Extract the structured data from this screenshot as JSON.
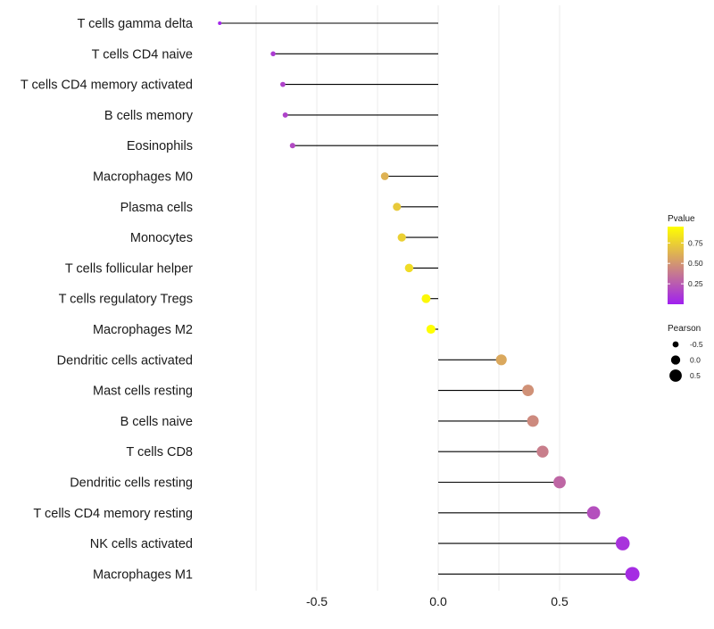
{
  "chart_data": {
    "type": "lollipop",
    "title": "",
    "xlabel": "",
    "ylabel": "",
    "xlim": [
      -1.0,
      0.82
    ],
    "x_ticks": [
      -0.5,
      0.0,
      0.5
    ],
    "x_tick_labels": [
      "-0.5",
      "0.0",
      "0.5"
    ],
    "categories": [
      "T cells gamma delta",
      "T cells CD4 naive",
      "T cells CD4 memory activated",
      "B cells memory",
      "Eosinophils",
      "Macrophages M0",
      "Plasma cells",
      "Monocytes",
      "T cells follicular helper",
      "T cells regulatory  Tregs",
      "Macrophages M2",
      "Dendritic cells activated",
      "Mast cells resting",
      "B cells naive",
      "T cells CD8",
      "Dendritic cells resting",
      "T cells CD4 memory resting",
      "NK cells activated",
      "Macrophages M1"
    ],
    "pearson": [
      -0.9,
      -0.68,
      -0.64,
      -0.63,
      -0.6,
      -0.22,
      -0.17,
      -0.15,
      -0.12,
      -0.05,
      -0.03,
      0.26,
      0.37,
      0.39,
      0.43,
      0.5,
      0.64,
      0.76,
      0.8
    ],
    "pvalue": [
      0.02,
      0.12,
      0.15,
      0.15,
      0.18,
      0.62,
      0.72,
      0.75,
      0.8,
      0.92,
      0.95,
      0.58,
      0.48,
      0.45,
      0.4,
      0.3,
      0.2,
      0.08,
      0.05
    ],
    "legend_color": {
      "title": "Pvalue",
      "ticks": [
        0.75,
        0.5,
        0.25
      ],
      "tick_labels": [
        "0.75",
        "0.50",
        "0.25"
      ],
      "range": [
        0.0,
        0.95
      ],
      "low_color": "#a020f0",
      "high_color": "#ffff00"
    },
    "legend_size": {
      "title": "Pearson",
      "values": [
        -0.5,
        0.0,
        0.5
      ],
      "labels": [
        "-0.5",
        "0.0",
        "0.5"
      ]
    },
    "stem_color": "#000000",
    "grid": true
  }
}
